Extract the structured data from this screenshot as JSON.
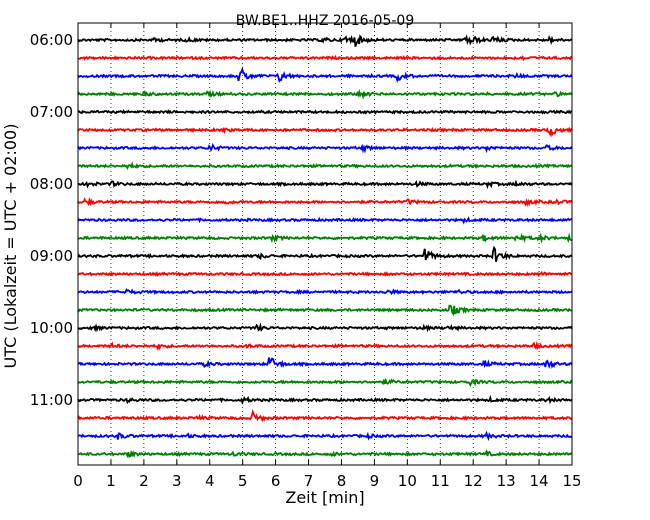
{
  "chart_data": {
    "type": "line",
    "title": "BW.BE1..HHZ 2016-05-09",
    "xlabel": "Zeit  [min]",
    "ylabel": "UTC (Lokalzeit = UTC + 02:00)",
    "xlim": [
      0,
      15
    ],
    "x_ticks": [
      "0",
      "1",
      "2",
      "3",
      "4",
      "5",
      "6",
      "7",
      "8",
      "9",
      "10",
      "11",
      "12",
      "13",
      "14",
      "15"
    ],
    "minutes_per_trace": 15,
    "start_time": "06:00",
    "y_ticks": [
      "06:00",
      "07:00",
      "08:00",
      "09:00",
      "10:00",
      "11:00"
    ],
    "grid": "vertical dotted lines at each minute",
    "trace_colors": [
      "#000000",
      "#ff0000",
      "#0000ff",
      "#008000"
    ],
    "traces": [
      {
        "start": "06:00",
        "events": [
          [
            2.3,
            0.25
          ],
          [
            3.3,
            0.2
          ],
          [
            7.4,
            0.3
          ],
          [
            8.1,
            0.7
          ],
          [
            8.4,
            0.8
          ],
          [
            11.7,
            0.5
          ],
          [
            11.9,
            0.6
          ],
          [
            12.6,
            0.5
          ],
          [
            14.3,
            0.3
          ]
        ]
      },
      {
        "start": "06:15",
        "events": [
          [
            13.4,
            0.2
          ]
        ]
      },
      {
        "start": "06:30",
        "events": [
          [
            4.9,
            1.3
          ],
          [
            6.1,
            0.8
          ],
          [
            9.7,
            0.6
          ],
          [
            13.3,
            0.2
          ]
        ]
      },
      {
        "start": "06:45",
        "events": [
          [
            2.0,
            0.25
          ],
          [
            3.9,
            0.3
          ],
          [
            8.5,
            0.5
          ],
          [
            14.5,
            0.25
          ]
        ]
      },
      {
        "start": "07:00",
        "events": []
      },
      {
        "start": "07:15",
        "events": [
          [
            4.4,
            0.2
          ],
          [
            14.3,
            1.0
          ]
        ]
      },
      {
        "start": "07:30",
        "events": [
          [
            4.0,
            0.5
          ],
          [
            8.6,
            0.4
          ],
          [
            12.4,
            0.25
          ],
          [
            14.2,
            0.3
          ]
        ]
      },
      {
        "start": "07:45",
        "events": [
          [
            1.5,
            0.3
          ]
        ]
      },
      {
        "start": "08:00",
        "events": [
          [
            0.3,
            0.3
          ],
          [
            1.0,
            0.3
          ],
          [
            10.2,
            0.3
          ],
          [
            12.4,
            0.3
          ],
          [
            13.3,
            0.2
          ]
        ]
      },
      {
        "start": "08:15",
        "events": [
          [
            0.2,
            0.35
          ],
          [
            4.4,
            0.3
          ],
          [
            10.0,
            0.3
          ],
          [
            13.6,
            0.3
          ],
          [
            14.5,
            0.3
          ]
        ]
      },
      {
        "start": "08:30",
        "events": [
          [
            11.7,
            0.2
          ]
        ]
      },
      {
        "start": "08:45",
        "events": [
          [
            5.9,
            0.3
          ],
          [
            12.3,
            0.35
          ],
          [
            13.3,
            0.5
          ],
          [
            14.0,
            0.4
          ],
          [
            14.9,
            0.3
          ]
        ]
      },
      {
        "start": "09:00",
        "events": [
          [
            5.5,
            0.3
          ],
          [
            10.5,
            1.2
          ],
          [
            12.6,
            1.3
          ]
        ]
      },
      {
        "start": "09:15",
        "events": [
          [
            14.0,
            0.2
          ]
        ]
      },
      {
        "start": "09:30",
        "events": [
          [
            1.4,
            0.4
          ],
          [
            9.3,
            0.3
          ],
          [
            11.5,
            0.25
          ]
        ]
      },
      {
        "start": "09:45",
        "events": [
          [
            11.3,
            0.9
          ]
        ]
      },
      {
        "start": "10:00",
        "events": [
          [
            0.4,
            0.25
          ],
          [
            5.4,
            0.4
          ],
          [
            10.4,
            0.25
          ],
          [
            11.2,
            0.25
          ]
        ]
      },
      {
        "start": "10:15",
        "events": [
          [
            1.0,
            0.25
          ],
          [
            2.4,
            0.3
          ],
          [
            5.1,
            0.2
          ],
          [
            13.8,
            0.3
          ]
        ]
      },
      {
        "start": "10:30",
        "events": [
          [
            3.8,
            0.3
          ],
          [
            5.8,
            1.2
          ],
          [
            12.3,
            0.35
          ],
          [
            14.2,
            0.7
          ]
        ]
      },
      {
        "start": "10:45",
        "events": [
          [
            9.3,
            0.3
          ],
          [
            11.9,
            0.35
          ]
        ]
      },
      {
        "start": "11:00",
        "events": [
          [
            1.5,
            0.2
          ],
          [
            5.0,
            0.3
          ],
          [
            12.5,
            0.2
          ],
          [
            14.2,
            0.25
          ]
        ]
      },
      {
        "start": "11:15",
        "events": [
          [
            3.6,
            0.2
          ],
          [
            5.3,
            0.8
          ]
        ]
      },
      {
        "start": "11:30",
        "events": [
          [
            1.2,
            0.4
          ],
          [
            3.3,
            0.2
          ],
          [
            8.8,
            0.2
          ],
          [
            12.4,
            0.3
          ]
        ]
      },
      {
        "start": "11:45",
        "events": [
          [
            1.5,
            0.35
          ],
          [
            4.7,
            0.25
          ],
          [
            7.7,
            0.2
          ],
          [
            12.4,
            0.2
          ]
        ]
      }
    ]
  }
}
